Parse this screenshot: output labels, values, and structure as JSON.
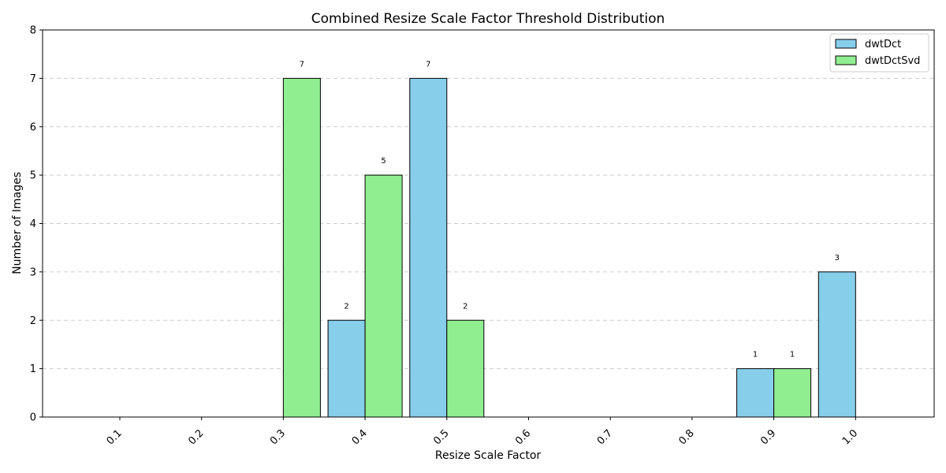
{
  "chart_data": {
    "type": "bar",
    "title": "Combined Resize Scale Factor Threshold Distribution",
    "xlabel": "Resize Scale Factor",
    "ylabel": "Number of Images",
    "categories": [
      "0.1",
      "0.2",
      "0.3",
      "0.4",
      "0.5",
      "0.6",
      "0.7",
      "0.8",
      "0.9",
      "1.0"
    ],
    "series": [
      {
        "name": "dwtDct",
        "values": [
          0,
          0,
          0,
          2,
          7,
          0,
          0,
          0,
          1,
          3
        ],
        "color": "#87CEEB"
      },
      {
        "name": "dwtDctSvd",
        "values": [
          0,
          0,
          7,
          5,
          2,
          0,
          0,
          0,
          1,
          0
        ],
        "color": "#90EE90"
      }
    ],
    "ylim": [
      0,
      8
    ],
    "yticks": [
      "0",
      "1",
      "2",
      "3",
      "4",
      "5",
      "6",
      "7",
      "8"
    ],
    "grid": true,
    "grid_style": "dashed",
    "legend_position": "top-right"
  }
}
